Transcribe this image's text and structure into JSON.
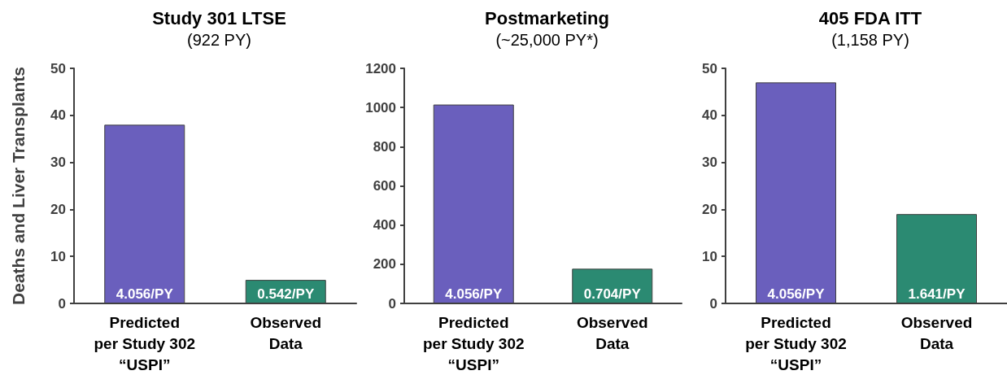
{
  "chart_data": [
    {
      "type": "bar",
      "title": "Study 301 LTSE",
      "subtitle": "(922 PY)",
      "ylabel": "Deaths and Liver Transplants",
      "categories": [
        "Predicted\nper Study 302\n“USPI”",
        "Observed\nData"
      ],
      "values": [
        38,
        5
      ],
      "colors": [
        "#6a5fbd",
        "#2b8a72"
      ],
      "annotations": [
        {
          "text": "4.056/PY",
          "x": "Predicted\nper Study 302\n“USPI”",
          "y": 0
        },
        {
          "text": "0.542/PY",
          "x": "Observed\nData",
          "y": 0
        }
      ],
      "ylim": [
        0,
        50
      ],
      "yticks": [
        0,
        10,
        20,
        30,
        40,
        50
      ],
      "grid": false
    },
    {
      "type": "bar",
      "title": "Postmarketing",
      "subtitle": "(~25,000 PY*)",
      "categories": [
        "Predicted\nper Study 302\n“USPI”",
        "Observed\nData"
      ],
      "values": [
        1015,
        177
      ],
      "colors": [
        "#6a5fbd",
        "#2b8a72"
      ],
      "annotations": [
        {
          "text": "4.056/PY",
          "x": "Predicted\nper Study 302\n“USPI”",
          "y": 0
        },
        {
          "text": "0.704/PY",
          "x": "Observed\nData",
          "y": 0
        }
      ],
      "ylim": [
        0,
        1200
      ],
      "yticks": [
        0,
        200,
        400,
        600,
        800,
        1000,
        1200
      ],
      "grid": false
    },
    {
      "type": "bar",
      "title": "405 FDA ITT",
      "subtitle": "(1,158 PY)",
      "categories": [
        "Predicted\nper Study 302\n“USPI”",
        "Observed\nData"
      ],
      "values": [
        47,
        19
      ],
      "colors": [
        "#6a5fbd",
        "#2b8a72"
      ],
      "annotations": [
        {
          "text": "4.056/PY",
          "x": "Predicted\nper Study 302\n“USPI”",
          "y": 0
        },
        {
          "text": "1.641/PY",
          "x": "Observed\nData",
          "y": 0
        }
      ],
      "ylim": [
        0,
        50
      ],
      "yticks": [
        0,
        10,
        20,
        30,
        40,
        50
      ],
      "grid": false
    }
  ]
}
